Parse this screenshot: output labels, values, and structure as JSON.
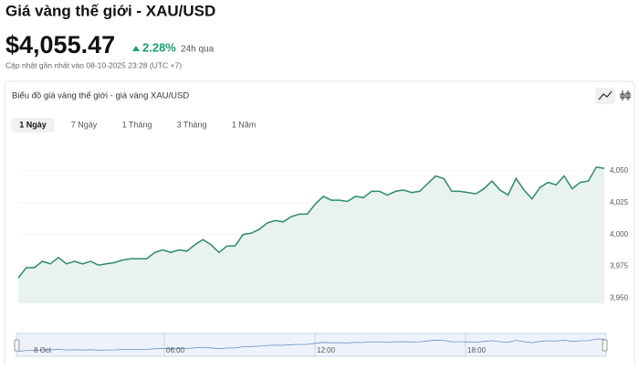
{
  "header": {
    "title": "Giá vàng thế giới - XAU/USD",
    "price": "$4,055.47",
    "change": "2.28%",
    "period": "24h qua",
    "updated": "Cập nhật gần nhất vào 08-10-2025 23:28 (UTC +7)"
  },
  "panel": {
    "title": "Biểu đồ giá vàng thế giới - giá vàng XAU/USD",
    "tabs": [
      "1 Ngày",
      "7 Ngày",
      "1 Tháng",
      "3 Tháng",
      "1 Năm"
    ]
  },
  "chart_data": {
    "type": "line",
    "color": "#2e8b6a",
    "values": [
      3966,
      3974,
      3974,
      3979,
      3977,
      3982,
      3977,
      3979,
      3977,
      3979,
      3976,
      3977,
      3978,
      3980,
      3981,
      3981,
      3981,
      3986,
      3988,
      3986,
      3988,
      3987,
      3992,
      3996,
      3992,
      3986,
      3991,
      3991,
      4000,
      4001,
      4004,
      4009,
      4011,
      4010,
      4014,
      4016,
      4016,
      4024,
      4030,
      4027,
      4027,
      4026,
      4030,
      4029,
      4034,
      4034,
      4031,
      4034,
      4035,
      4033,
      4034,
      4040,
      4046,
      4044,
      4034,
      4034,
      4033,
      4032,
      4036,
      4042,
      4035,
      4031,
      4044,
      4035,
      4028,
      4037,
      4041,
      4039,
      4046,
      4036,
      4041,
      4042,
      4053,
      4052
    ],
    "ylim": [
      3946,
      4073
    ],
    "yticks": [
      {
        "value": 3950,
        "label": "3,950"
      },
      {
        "value": 3975,
        "label": "3,975"
      },
      {
        "value": 4000,
        "label": "4,000"
      },
      {
        "value": 4025,
        "label": "4,025"
      },
      {
        "value": 4050,
        "label": "4,050"
      }
    ]
  },
  "navigator": {
    "labels": [
      "8 Oct",
      "06:00",
      "12:00",
      "18:00"
    ]
  }
}
